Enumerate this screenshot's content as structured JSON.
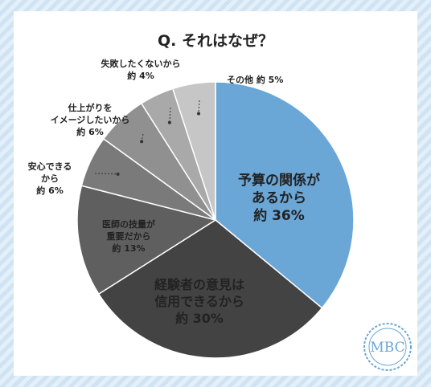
{
  "chart_data": {
    "type": "pie",
    "title": "Q. それはなぜ？",
    "slices": [
      {
        "lines": [
          "予算の関係が",
          "あるから",
          "約 36%"
        ],
        "value": 36,
        "color": "#6aa6d6",
        "label_color": "#ffffff"
      },
      {
        "lines": [
          "経験者の意見は",
          "信用できるから",
          "約 30%"
        ],
        "value": 30,
        "color": "#434343",
        "label_color": "#ffffff"
      },
      {
        "lines": [
          "医師の技量が",
          "重要だから",
          "約 13%"
        ],
        "value": 13,
        "color": "#5f5f5f",
        "label_color": "#ffffff"
      },
      {
        "lines": [
          "安心できる",
          "から",
          "約 6%"
        ],
        "value": 6,
        "color": "#7a7a7a",
        "label_color": "#222222"
      },
      {
        "lines": [
          "仕上がりを",
          "イメージしたいから",
          "約 6%"
        ],
        "value": 6,
        "color": "#909090",
        "label_color": "#222222"
      },
      {
        "lines": [
          "失敗したくないから",
          "約 4%"
        ],
        "value": 4,
        "color": "#a9a9a9",
        "label_color": "#222222"
      },
      {
        "lines": [
          "その他 約 5%"
        ],
        "value": 5,
        "color": "#c6c6c6",
        "label_color": "#222222"
      }
    ]
  },
  "logo": {
    "text": "MBC",
    "color": "#6aa6d6"
  }
}
